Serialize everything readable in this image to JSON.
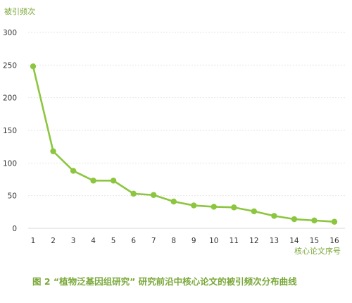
{
  "chart_data": {
    "type": "line",
    "ylabel": "被引频次",
    "xlabel": "核心论文序号",
    "caption": "图 2 “植物泛基因组研究” 研究前沿中核心论文的被引频次分布曲线",
    "x": [
      1,
      2,
      3,
      4,
      5,
      6,
      7,
      8,
      9,
      10,
      11,
      12,
      13,
      14,
      15,
      16
    ],
    "series": [
      {
        "values": [
          248,
          118,
          88,
          73,
          73,
          53,
          51,
          41,
          35,
          33,
          32,
          26,
          19,
          14,
          12,
          10
        ]
      }
    ],
    "ylim": [
      0,
      300
    ],
    "yticks": [
      0,
      50,
      100,
      150,
      200,
      250,
      300
    ],
    "grid": true,
    "color": "#8cc63f"
  }
}
